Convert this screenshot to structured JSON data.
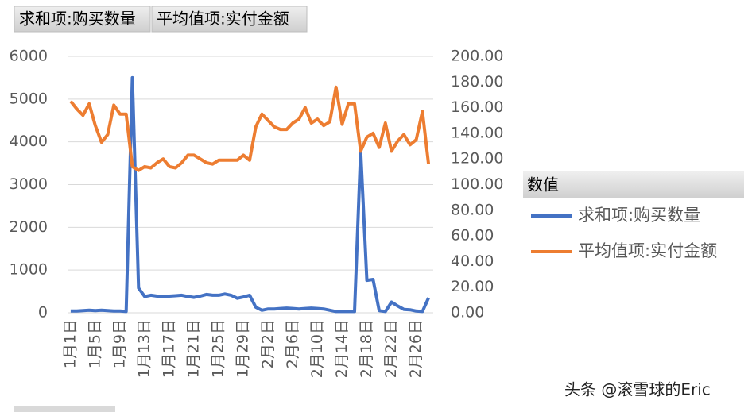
{
  "chart_data": {
    "type": "line",
    "field_buttons": [
      "求和项:购买数量",
      "平均值项:实付金额"
    ],
    "legend_title": "数值",
    "watermark": "头条 @滚雪球的Eric",
    "categories": [
      "1月1日",
      null,
      null,
      null,
      "1月5日",
      null,
      null,
      null,
      "1月9日",
      null,
      null,
      null,
      "1月13日",
      null,
      null,
      null,
      "1月17日",
      null,
      null,
      null,
      "1月21日",
      null,
      null,
      null,
      "1月25日",
      null,
      null,
      null,
      "1月29日",
      null,
      null,
      null,
      "2月2日",
      null,
      null,
      null,
      "2月6日",
      null,
      null,
      null,
      "2月10日",
      null,
      null,
      null,
      "2月14日",
      null,
      null,
      null,
      "2月18日",
      null,
      null,
      null,
      "2月22日",
      null,
      null,
      null,
      "2月26日",
      null,
      null
    ],
    "series": [
      {
        "name": "求和项:购买数量",
        "color": "#4472c4",
        "axis": "y",
        "values": [
          40,
          40,
          50,
          60,
          50,
          60,
          50,
          40,
          40,
          30,
          5500,
          580,
          380,
          410,
          390,
          390,
          390,
          400,
          410,
          380,
          360,
          390,
          430,
          410,
          410,
          440,
          410,
          340,
          370,
          410,
          130,
          60,
          90,
          90,
          100,
          110,
          100,
          90,
          100,
          110,
          100,
          90,
          60,
          30,
          30,
          30,
          30,
          3800,
          760,
          780,
          50,
          30,
          250,
          160,
          80,
          70,
          40,
          30,
          350
        ]
      },
      {
        "name": "平均值项:实付金额",
        "color": "#ed7d31",
        "axis": "y2",
        "values": [
          165,
          159,
          154,
          163,
          146,
          133,
          139,
          162,
          155,
          155,
          114,
          111,
          114,
          113,
          117,
          120,
          114,
          113,
          117,
          123,
          123,
          120,
          117,
          116,
          119,
          119,
          119,
          119,
          123,
          119,
          145,
          155,
          150,
          145,
          143,
          143,
          148,
          151,
          160,
          148,
          151,
          146,
          149,
          176,
          147,
          163,
          163,
          126,
          137,
          140,
          129,
          148,
          126,
          134,
          139,
          131,
          135,
          157,
          116
        ]
      }
    ],
    "ylim": [
      0,
      6000
    ],
    "yticks": [
      0,
      1000,
      2000,
      3000,
      4000,
      5000,
      6000
    ],
    "y2lim": [
      0,
      200
    ],
    "y2ticks": [
      {
        "value": 0,
        "label": "0.00"
      },
      {
        "value": 20,
        "label": "20.00"
      },
      {
        "value": 40,
        "label": "40.00"
      },
      {
        "value": 60,
        "label": "60.00"
      },
      {
        "value": 80,
        "label": "80.00"
      },
      {
        "value": 100,
        "label": "100.00"
      },
      {
        "value": 120,
        "label": "120.00"
      },
      {
        "value": 140,
        "label": "140.00"
      },
      {
        "value": 160,
        "label": "160.00"
      },
      {
        "value": 180,
        "label": "180.00"
      },
      {
        "value": 200,
        "label": "200.00"
      }
    ],
    "grid": true,
    "legend": "right"
  }
}
